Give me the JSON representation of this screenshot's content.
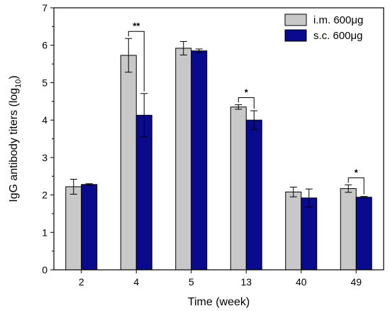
{
  "chart_data": {
    "type": "bar",
    "categories": [
      "2",
      "4",
      "5",
      "13",
      "40",
      "49"
    ],
    "xlabel": "Time (week)",
    "ylabel": "IgG antibody titers (log",
    "ylabel_sub": "10",
    "ylabel_end": ")",
    "ylim": [
      0,
      7
    ],
    "yticks": [
      0,
      1,
      2,
      3,
      4,
      5,
      6,
      7
    ],
    "grid": false,
    "legend_position": "top-right",
    "series": [
      {
        "name": "i.m. 600μg",
        "color": "#c8c8c8",
        "values": [
          2.22,
          5.73,
          5.92,
          4.35,
          2.08,
          2.17
        ],
        "errors": [
          0.2,
          0.45,
          0.18,
          0.06,
          0.13,
          0.1
        ]
      },
      {
        "name": "s.c. 600μg",
        "color": "#0a0a8c",
        "values": [
          2.28,
          4.13,
          5.85,
          4.0,
          1.92,
          1.94
        ],
        "errors": [
          0.02,
          0.58,
          0.05,
          0.25,
          0.24,
          0.02
        ]
      }
    ],
    "significance": [
      {
        "category": "4",
        "label": "**"
      },
      {
        "category": "13",
        "label": "*"
      },
      {
        "category": "49",
        "label": "*"
      }
    ]
  }
}
